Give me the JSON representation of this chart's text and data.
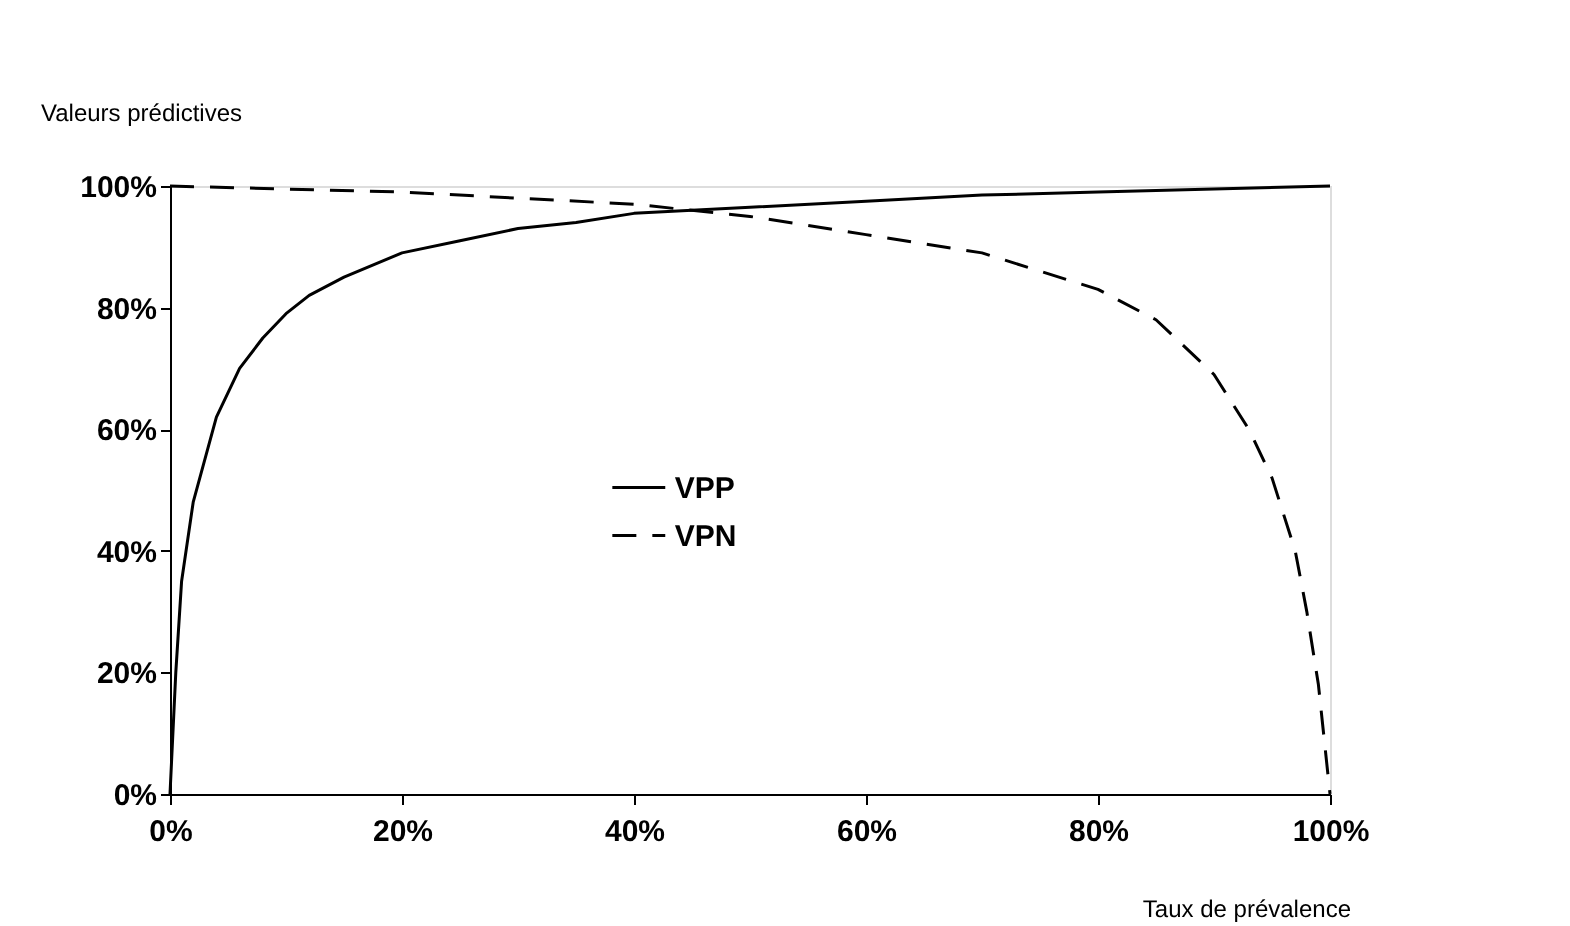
{
  "chart_data": {
    "type": "line",
    "ylabel": "Valeurs prédictives",
    "xlabel": "Taux de prévalence",
    "xlim": [
      0,
      100
    ],
    "ylim": [
      0,
      100
    ],
    "xticks": [
      {
        "value": 0,
        "label": "0%"
      },
      {
        "value": 20,
        "label": "20%"
      },
      {
        "value": 40,
        "label": "40%"
      },
      {
        "value": 60,
        "label": "60%"
      },
      {
        "value": 80,
        "label": "80%"
      },
      {
        "value": 100,
        "label": "100%"
      }
    ],
    "yticks": [
      {
        "value": 0,
        "label": "0%"
      },
      {
        "value": 20,
        "label": "20%"
      },
      {
        "value": 40,
        "label": "40%"
      },
      {
        "value": 60,
        "label": "60%"
      },
      {
        "value": 80,
        "label": "80%"
      },
      {
        "value": 100,
        "label": "100%"
      }
    ],
    "grid": false,
    "legend": "center",
    "marker": "none",
    "series": [
      {
        "name": "VPP",
        "color": "#000000",
        "line_style": "solid",
        "x": [
          0,
          0.5,
          1,
          2,
          4,
          6,
          8,
          10,
          12,
          15,
          20,
          25,
          30,
          35,
          40,
          45,
          50,
          60,
          70,
          80,
          90,
          100
        ],
        "values": [
          0,
          20,
          35,
          48,
          62,
          70,
          75,
          79,
          82,
          85,
          89,
          91,
          93,
          94,
          95.5,
          96,
          96.5,
          97.5,
          98.5,
          99,
          99.5,
          100
        ]
      },
      {
        "name": "VPN",
        "color": "#000000",
        "line_style": "dashed",
        "x": [
          0,
          10,
          20,
          30,
          40,
          50,
          60,
          70,
          80,
          85,
          90,
          93,
          95,
          97,
          98,
          99,
          100
        ],
        "values": [
          100,
          99.5,
          99,
          98,
          97,
          95,
          92,
          89,
          83,
          78,
          69,
          60,
          52,
          40,
          30,
          18,
          0
        ]
      }
    ]
  }
}
